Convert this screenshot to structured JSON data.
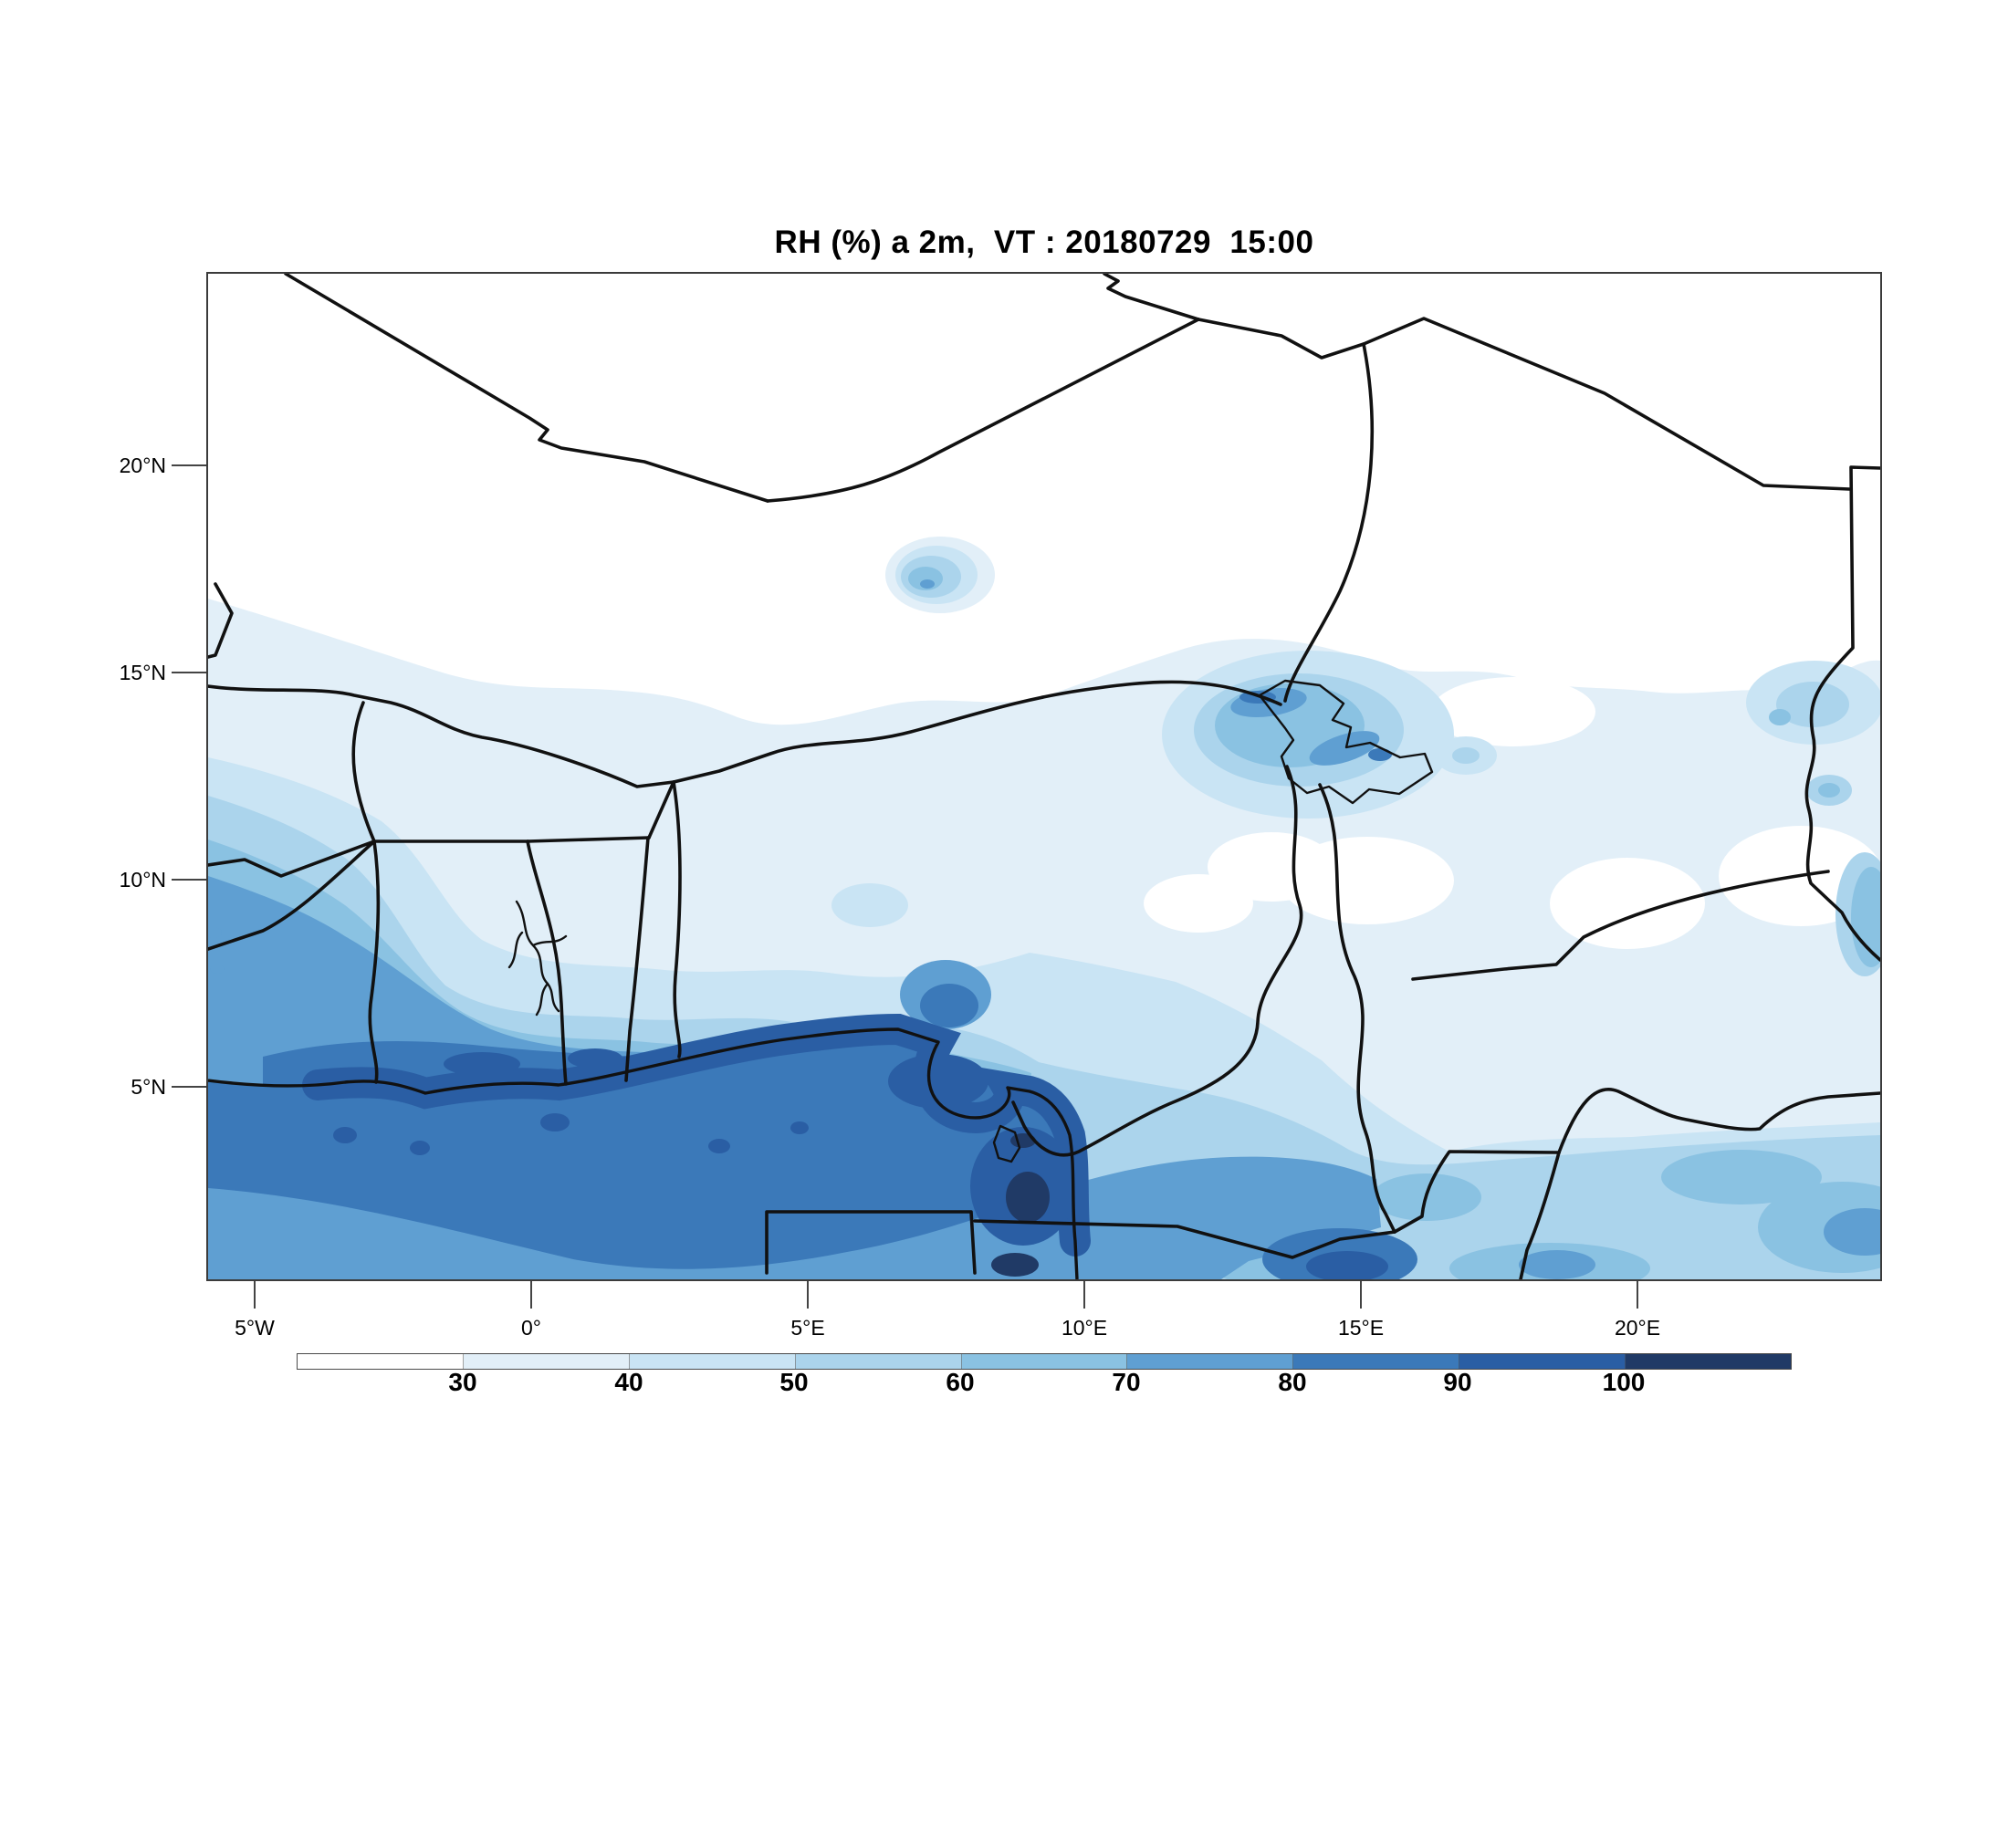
{
  "title": "RH (%) a 2m,  VT : 20180729  15:00",
  "field": {
    "variable": "RH (%) a 2m",
    "valid_time": "20180729 15:00"
  },
  "map": {
    "x_ticks": [
      "5°W",
      "0°",
      "5°E",
      "10°E",
      "15°E",
      "20°E"
    ],
    "y_ticks": [
      "20°N",
      "15°N",
      "10°N",
      "5°N"
    ],
    "frame_color": "#3b3b3b"
  },
  "colorbar": {
    "tick_labels": [
      "30",
      "40",
      "50",
      "60",
      "70",
      "80",
      "90",
      "100"
    ],
    "segments": [
      {
        "range": "< 30",
        "color": "#ffffff"
      },
      {
        "range": "30-40",
        "color": "#e2eff8"
      },
      {
        "range": "40-50",
        "color": "#c9e4f4"
      },
      {
        "range": "50-60",
        "color": "#abd4ec"
      },
      {
        "range": "60-70",
        "color": "#8ac2e2"
      },
      {
        "range": "70-80",
        "color": "#5f9fd2"
      },
      {
        "range": "80-90",
        "color": "#3b79b9"
      },
      {
        "range": "90-100",
        "color": "#2a5ea4"
      },
      {
        "range": "> 100",
        "color": "#203a66"
      }
    ]
  },
  "chart_data": {
    "type": "heatmap",
    "title": "RH (%) a 2m,  VT : 20180729  15:00",
    "units": "%",
    "contour_levels": [
      30,
      40,
      50,
      60,
      70,
      80,
      90,
      100
    ],
    "level_colors": [
      "#ffffff",
      "#e2eff8",
      "#c9e4f4",
      "#abd4ec",
      "#8ac2e2",
      "#5f9fd2",
      "#3b79b9",
      "#2a5ea4",
      "#203a66"
    ],
    "x_axis_ticks": [
      "5°W",
      "0°",
      "5°E",
      "10°E",
      "15°E",
      "20°E"
    ],
    "y_axis_ticks": [
      "20°N",
      "15°N",
      "10°N",
      "5°N"
    ],
    "legend_position": "bottom",
    "notes_visible_pattern": "High RH (80-100%) over Gulf of Guinea and coastal West Africa; values decrease northward to <30% over the Sahara; moist pocket over Lake Chad and isolated blob near 7.5E,17.5N"
  }
}
